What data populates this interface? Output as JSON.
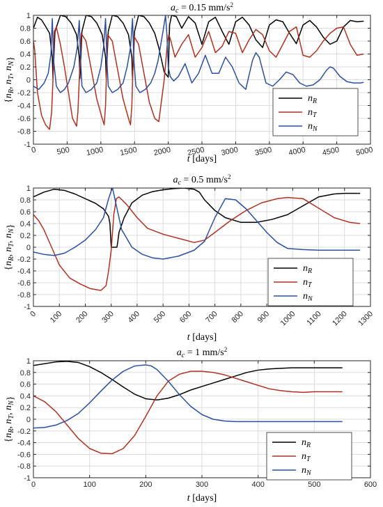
{
  "chart_data": [
    {
      "type": "line",
      "title": "a_c = 0.15 mm/s²",
      "title_parts": {
        "var": "a",
        "sub": "c",
        "mid": " = 0.15 mm/s",
        "sup": "2"
      },
      "xlabel": {
        "var": "t",
        "unit": " [days]"
      },
      "ylabel": "{n_R, n_T, n_N}",
      "xlim": [
        0,
        5000
      ],
      "ylim": [
        -1,
        1
      ],
      "grid": true,
      "legend_position": "lower-right",
      "xticks": [
        0,
        500,
        1000,
        1500,
        2000,
        2500,
        3000,
        3500,
        4000,
        4500,
        5000
      ],
      "yticks": [
        -1,
        -0.8,
        -0.6,
        -0.4,
        -0.2,
        0,
        0.2,
        0.4,
        0.6,
        0.8,
        1
      ],
      "series": [
        {
          "name": "n_R",
          "color": "#000000",
          "x": [
            0,
            60,
            120,
            180,
            240,
            280,
            290,
            320,
            400,
            480,
            560,
            640,
            680,
            690,
            720,
            780,
            860,
            940,
            1020,
            1070,
            1080,
            1110,
            1170,
            1250,
            1330,
            1410,
            1460,
            1470,
            1500,
            1560,
            1640,
            1720,
            1800,
            1860,
            1940,
            2000,
            2020,
            2050,
            2120,
            2200,
            2300,
            2400,
            2500,
            2600,
            2700,
            2800,
            2900,
            3000,
            3100,
            3200,
            3300,
            3400,
            3500,
            3600,
            3700,
            3800,
            3900,
            4000,
            4100,
            4200,
            4300,
            4400,
            4500,
            4600,
            4700,
            4800,
            4900
          ],
          "y": [
            0.8,
            0.97,
            0.93,
            0.83,
            0.72,
            0.35,
            0.02,
            0.75,
            1.0,
            0.98,
            0.88,
            0.7,
            0.35,
            0.02,
            0.75,
            1.0,
            0.98,
            0.88,
            0.7,
            0.35,
            0.02,
            0.75,
            1.0,
            0.98,
            0.88,
            0.7,
            0.35,
            0.02,
            0.75,
            1.0,
            0.98,
            0.88,
            0.72,
            0.5,
            0.12,
            0.04,
            0.85,
            1.0,
            0.98,
            0.8,
            0.98,
            0.88,
            0.55,
            0.9,
            0.97,
            0.75,
            0.55,
            0.9,
            0.97,
            0.85,
            0.62,
            0.5,
            0.85,
            0.93,
            0.9,
            0.72,
            0.56,
            0.85,
            0.92,
            0.82,
            0.66,
            0.55,
            0.6,
            0.82,
            0.92,
            0.9,
            0.91
          ]
        },
        {
          "name": "n_T",
          "color": "#b03020",
          "x": [
            0,
            20,
            60,
            120,
            180,
            240,
            270,
            290,
            310,
            340,
            400,
            460,
            520,
            580,
            640,
            660,
            680,
            710,
            780,
            860,
            940,
            1020,
            1050,
            1070,
            1100,
            1170,
            1250,
            1330,
            1410,
            1440,
            1460,
            1490,
            1560,
            1640,
            1720,
            1800,
            1860,
            1940,
            1990,
            2010,
            2040,
            2100,
            2200,
            2300,
            2400,
            2500,
            2600,
            2700,
            2800,
            2900,
            3000,
            3100,
            3200,
            3300,
            3400,
            3500,
            3600,
            3700,
            3800,
            3900,
            4000,
            4100,
            4200,
            4300,
            4400,
            4500,
            4600,
            4700,
            4800,
            4900
          ],
          "y": [
            0.6,
            0.45,
            -0.2,
            -0.55,
            -0.7,
            -0.77,
            -0.5,
            0.0,
            0.75,
            0.82,
            0.55,
            0.2,
            -0.2,
            -0.6,
            -0.72,
            -0.5,
            0.0,
            0.72,
            0.6,
            0.15,
            -0.3,
            -0.6,
            -0.7,
            -0.4,
            0.7,
            0.6,
            0.15,
            -0.3,
            -0.6,
            -0.7,
            -0.4,
            0.68,
            0.55,
            0.1,
            -0.35,
            -0.6,
            -0.65,
            0.0,
            0.6,
            0.7,
            0.6,
            0.35,
            0.55,
            0.7,
            0.35,
            0.5,
            0.75,
            0.42,
            0.52,
            0.75,
            0.72,
            0.42,
            0.62,
            0.78,
            0.7,
            0.45,
            0.35,
            0.55,
            0.75,
            0.82,
            0.38,
            0.35,
            0.45,
            0.6,
            0.72,
            0.8,
            0.82,
            0.55,
            0.38,
            0.4
          ]
        },
        {
          "name": "n_N",
          "color": "#2b4ea0",
          "x": [
            0,
            80,
            160,
            220,
            260,
            280,
            300,
            340,
            400,
            460,
            520,
            600,
            650,
            680,
            700,
            720,
            780,
            860,
            940,
            1000,
            1040,
            1070,
            1090,
            1110,
            1170,
            1250,
            1330,
            1390,
            1440,
            1470,
            1490,
            1520,
            1580,
            1660,
            1740,
            1800,
            1850,
            1890,
            1930,
            1960,
            1980,
            2000,
            2030,
            2080,
            2150,
            2250,
            2350,
            2450,
            2550,
            2650,
            2750,
            2850,
            2950,
            3050,
            3150,
            3250,
            3300,
            3350,
            3450,
            3550,
            3650,
            3750,
            3850,
            3950,
            4050,
            4150,
            4250,
            4350,
            4400,
            4450,
            4550,
            4650,
            4750,
            4850,
            4900
          ],
          "y": [
            -0.1,
            -0.15,
            -0.05,
            0.1,
            0.4,
            0.95,
            0.3,
            -0.1,
            -0.2,
            -0.15,
            -0.05,
            0.2,
            0.5,
            0.92,
            0.3,
            -0.1,
            -0.2,
            -0.15,
            -0.05,
            0.2,
            0.5,
            0.95,
            0.3,
            -0.1,
            -0.2,
            -0.15,
            -0.05,
            0.2,
            0.5,
            0.95,
            0.3,
            -0.1,
            -0.2,
            -0.15,
            -0.05,
            0.1,
            0.3,
            0.55,
            0.8,
            1.0,
            0.7,
            0.2,
            0.05,
            -0.02,
            0.05,
            0.25,
            -0.05,
            0.1,
            0.38,
            0.1,
            0.1,
            0.35,
            0.2,
            -0.05,
            -0.15,
            0.3,
            0.42,
            0.35,
            -0.05,
            -0.1,
            0.0,
            0.12,
            0.08,
            -0.05,
            -0.1,
            -0.08,
            0.0,
            0.15,
            0.2,
            0.18,
            0.05,
            -0.03,
            -0.05,
            -0.05,
            -0.04
          ]
        }
      ]
    },
    {
      "type": "line",
      "title": "a_c = 0.5 mm/s²",
      "title_parts": {
        "var": "a",
        "sub": "c",
        "mid": " = 0.5 mm/s",
        "sup": "2"
      },
      "xlabel": {
        "var": "t",
        "unit": " [days]"
      },
      "ylabel": "{n_R, n_T, n_N}",
      "xlim": [
        0,
        1300
      ],
      "ylim": [
        -1,
        1
      ],
      "grid": true,
      "legend_position": "lower-right",
      "xticks": [
        0,
        100,
        200,
        300,
        400,
        500,
        600,
        700,
        800,
        900,
        1000,
        1100,
        1200,
        1300
      ],
      "yticks": [
        -1,
        -0.8,
        -0.6,
        -0.4,
        -0.2,
        0,
        0.2,
        0.4,
        0.6,
        0.8,
        1
      ],
      "series": [
        {
          "name": "n_R",
          "color": "#000000",
          "x": [
            0,
            40,
            80,
            120,
            160,
            200,
            240,
            270,
            290,
            295,
            300,
            310,
            322,
            325,
            330,
            350,
            380,
            420,
            460,
            500,
            540,
            580,
            620,
            640,
            660,
            700,
            740,
            800,
            860,
            920,
            980,
            1040,
            1100,
            1160,
            1200,
            1260
          ],
          "y": [
            0.85,
            0.93,
            0.98,
            0.96,
            0.9,
            0.82,
            0.74,
            0.65,
            0.52,
            0.4,
            0.0,
            0.0,
            0.0,
            0.08,
            0.25,
            0.5,
            0.75,
            0.88,
            0.94,
            0.97,
            0.99,
            1.0,
            0.98,
            0.93,
            0.8,
            0.62,
            0.5,
            0.42,
            0.42,
            0.47,
            0.55,
            0.7,
            0.85,
            0.9,
            0.91,
            0.91
          ]
        },
        {
          "name": "n_T",
          "color": "#b03020",
          "x": [
            0,
            20,
            40,
            60,
            80,
            100,
            140,
            180,
            220,
            260,
            280,
            290,
            300,
            310,
            320,
            330,
            360,
            400,
            440,
            500,
            560,
            620,
            660,
            700,
            760,
            820,
            880,
            940,
            980,
            1040,
            1100,
            1160,
            1220,
            1260
          ],
          "y": [
            0.55,
            0.45,
            0.3,
            0.1,
            -0.1,
            -0.3,
            -0.52,
            -0.62,
            -0.7,
            -0.73,
            -0.65,
            -0.4,
            -0.05,
            0.55,
            0.82,
            0.85,
            0.72,
            0.5,
            0.32,
            0.22,
            0.15,
            0.08,
            0.12,
            0.25,
            0.45,
            0.62,
            0.75,
            0.82,
            0.84,
            0.82,
            0.66,
            0.5,
            0.42,
            0.4
          ]
        },
        {
          "name": "n_N",
          "color": "#2b4ea0",
          "x": [
            0,
            40,
            80,
            120,
            160,
            200,
            240,
            270,
            290,
            300,
            305,
            310,
            320,
            340,
            380,
            420,
            460,
            500,
            560,
            620,
            660,
            700,
            740,
            780,
            820,
            860,
            900,
            940,
            980,
            1040,
            1100,
            1160,
            1220,
            1260
          ],
          "y": [
            -0.08,
            -0.12,
            -0.14,
            -0.1,
            0.0,
            0.12,
            0.3,
            0.5,
            0.82,
            0.95,
            1.0,
            0.9,
            0.7,
            0.3,
            0.0,
            -0.12,
            -0.18,
            -0.2,
            -0.15,
            -0.05,
            0.1,
            0.5,
            0.82,
            0.8,
            0.65,
            0.45,
            0.25,
            0.08,
            -0.02,
            -0.04,
            -0.05,
            -0.05,
            -0.05,
            -0.05
          ]
        }
      ]
    },
    {
      "type": "line",
      "title": "a_c = 1 mm/s²",
      "title_parts": {
        "var": "a",
        "sub": "c",
        "mid": " = 1 mm/s",
        "sup": "2"
      },
      "xlabel": {
        "var": "t",
        "unit": " [days]"
      },
      "ylabel": "{n_R, n_T, n_N}",
      "xlim": [
        0,
        600
      ],
      "ylim": [
        -1,
        1
      ],
      "grid": true,
      "legend_position": "lower-right",
      "xticks": [
        0,
        100,
        200,
        300,
        400,
        500,
        600
      ],
      "yticks": [
        -1,
        -0.8,
        -0.6,
        -0.4,
        -0.2,
        0,
        0.2,
        0.4,
        0.6,
        0.8,
        1
      ],
      "series": [
        {
          "name": "n_R",
          "color": "#000000",
          "x": [
            0,
            20,
            40,
            60,
            80,
            100,
            120,
            140,
            160,
            180,
            200,
            220,
            240,
            260,
            280,
            300,
            320,
            340,
            360,
            380,
            400,
            420,
            440,
            460,
            480,
            500,
            520,
            550
          ],
          "y": [
            0.92,
            0.95,
            0.98,
            0.99,
            0.97,
            0.9,
            0.8,
            0.68,
            0.55,
            0.43,
            0.35,
            0.33,
            0.36,
            0.42,
            0.5,
            0.56,
            0.62,
            0.68,
            0.74,
            0.8,
            0.84,
            0.86,
            0.87,
            0.88,
            0.88,
            0.88,
            0.88,
            0.88
          ]
        },
        {
          "name": "n_T",
          "color": "#b03020",
          "x": [
            0,
            20,
            40,
            60,
            80,
            100,
            120,
            140,
            160,
            180,
            200,
            220,
            240,
            260,
            280,
            300,
            320,
            340,
            360,
            380,
            400,
            420,
            440,
            460,
            480,
            500,
            520,
            550
          ],
          "y": [
            0.4,
            0.3,
            0.13,
            -0.1,
            -0.33,
            -0.5,
            -0.58,
            -0.59,
            -0.5,
            -0.28,
            0.05,
            0.4,
            0.65,
            0.77,
            0.82,
            0.82,
            0.8,
            0.76,
            0.7,
            0.64,
            0.58,
            0.52,
            0.49,
            0.47,
            0.46,
            0.47,
            0.47,
            0.47
          ]
        },
        {
          "name": "n_N",
          "color": "#2b4ea0",
          "x": [
            0,
            20,
            40,
            60,
            80,
            100,
            120,
            140,
            160,
            180,
            200,
            210,
            220,
            240,
            260,
            280,
            300,
            320,
            340,
            360,
            380,
            400,
            420,
            440,
            460,
            480,
            500,
            520,
            550
          ],
          "y": [
            -0.15,
            -0.14,
            -0.1,
            -0.02,
            0.1,
            0.28,
            0.48,
            0.67,
            0.82,
            0.91,
            0.93,
            0.91,
            0.85,
            0.65,
            0.42,
            0.22,
            0.08,
            0.0,
            -0.03,
            -0.04,
            -0.04,
            -0.04,
            -0.04,
            -0.04,
            -0.04,
            -0.04,
            -0.04,
            -0.04,
            -0.04
          ]
        }
      ]
    }
  ]
}
